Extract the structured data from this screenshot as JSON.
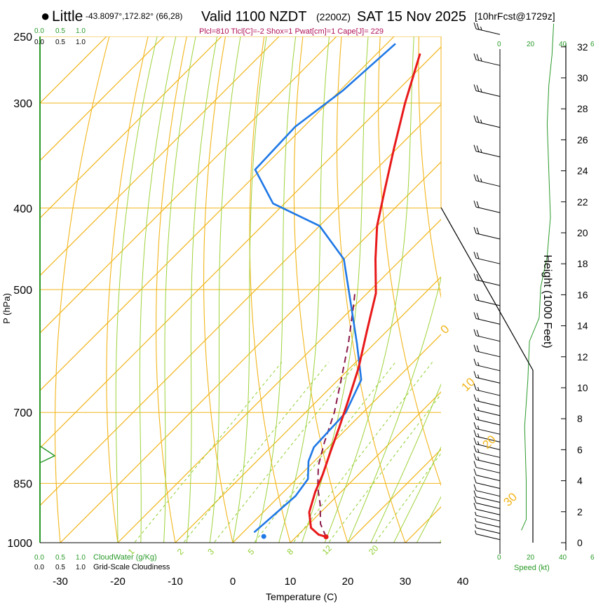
{
  "header": {
    "bullet": "●",
    "station": "Little",
    "coords": "-43.8097°,172.82° (66,28)",
    "valid": "Valid 1100 NZDT",
    "utc": "(2200Z)",
    "date": "SAT 15 Nov 2025",
    "forecast": "[10hrFcst@1729z]",
    "indices": "Plcl=810 Tlcl[C]=-2 Shox=1 Pwat[cm]=1 Cape[J]= 229"
  },
  "colors": {
    "temperature": "#e8191a",
    "dewpoint": "#1f78e6",
    "parcel": "#8b1a4a",
    "isotherm": "#f2b51a",
    "dry_adiabat": "#f2b51a",
    "moist_adiabat": "#9ed23a",
    "mixing_ratio": "#8fcf30",
    "cloud_green": "#2a9a2a",
    "indices_text": "#b0125a",
    "freezing_line": "#000000"
  },
  "chart_data": {
    "type": "skew-t",
    "xlabel": "Temperature (C)",
    "ylabel": "P (hPa)",
    "y2label": "Height (1000 Feet)",
    "x_tick_labels": [
      "-30",
      "-20",
      "-10",
      "0",
      "10",
      "20",
      "30",
      "40"
    ],
    "x_ticks": [
      -30,
      -20,
      -10,
      0,
      10,
      20,
      30,
      40
    ],
    "p_tick_labels": [
      "250",
      "300",
      "400",
      "500",
      "700",
      "850",
      "1000"
    ],
    "p_ticks": [
      250,
      300,
      400,
      500,
      700,
      850,
      1000
    ],
    "p_range": [
      250,
      1000
    ],
    "height_tick_labels": [
      "0",
      "2",
      "4",
      "6",
      "8",
      "10",
      "12",
      "14",
      "16",
      "18",
      "20",
      "22",
      "24",
      "26",
      "28",
      "30",
      "32"
    ],
    "height_ticks_kft": [
      0,
      2,
      4,
      6,
      8,
      10,
      12,
      14,
      16,
      18,
      20,
      22,
      24,
      26,
      28,
      30,
      32
    ],
    "temperature": [
      {
        "p": 984,
        "t": 15.2
      },
      {
        "p": 978,
        "t": 13.5
      },
      {
        "p": 960,
        "t": 11.0
      },
      {
        "p": 920,
        "t": 8.0
      },
      {
        "p": 870,
        "t": 5.5
      },
      {
        "p": 830,
        "t": 3.8
      },
      {
        "p": 780,
        "t": 1.2
      },
      {
        "p": 730,
        "t": -1.5
      },
      {
        "p": 680,
        "t": -4.5
      },
      {
        "p": 620,
        "t": -8.5
      },
      {
        "p": 560,
        "t": -13.5
      },
      {
        "p": 505,
        "t": -18.5
      },
      {
        "p": 460,
        "t": -24.5
      },
      {
        "p": 420,
        "t": -30.0
      },
      {
        "p": 380,
        "t": -35.0
      },
      {
        "p": 340,
        "t": -40.5
      },
      {
        "p": 300,
        "t": -46.5
      },
      {
        "p": 262,
        "t": -52.5
      }
    ],
    "dewpoint": [
      {
        "p": 972,
        "t": 1.9
      },
      {
        "p": 940,
        "t": 2.2
      },
      {
        "p": 880,
        "t": 2.8
      },
      {
        "p": 840,
        "t": 2.0
      },
      {
        "p": 800,
        "t": -1.0
      },
      {
        "p": 770,
        "t": -2.5
      },
      {
        "p": 700,
        "t": -3.0
      },
      {
        "p": 640,
        "t": -6.0
      },
      {
        "p": 580,
        "t": -13.0
      },
      {
        "p": 520,
        "t": -21.0
      },
      {
        "p": 460,
        "t": -30.0
      },
      {
        "p": 420,
        "t": -40.0
      },
      {
        "p": 395,
        "t": -52.0
      },
      {
        "p": 360,
        "t": -61.0
      },
      {
        "p": 320,
        "t": -61.5
      },
      {
        "p": 290,
        "t": -59.5
      },
      {
        "p": 255,
        "t": -58.5
      }
    ],
    "parcel": [
      {
        "p": 984,
        "t": 15.2
      },
      {
        "p": 950,
        "t": 12.0
      },
      {
        "p": 900,
        "t": 8.5
      },
      {
        "p": 860,
        "t": 5.2
      },
      {
        "p": 810,
        "t": 1.5
      },
      {
        "p": 760,
        "t": -1.5
      },
      {
        "p": 700,
        "t": -5.0
      },
      {
        "p": 640,
        "t": -9.5
      },
      {
        "p": 580,
        "t": -14.5
      },
      {
        "p": 520,
        "t": -20.5
      },
      {
        "p": 502,
        "t": -22.5
      }
    ],
    "surface_dewpoint_marker": {
      "p": 983,
      "t": 4.3
    },
    "surface_temperature_marker": {
      "p": 984,
      "t": 15.2
    },
    "isotherm_labels": [
      "-30",
      "-20",
      "-10",
      "0",
      "10",
      "20",
      "30"
    ],
    "isotherm_label_values": [
      -30,
      -20,
      -10,
      0,
      10,
      20,
      30
    ],
    "isotherm_left_labels": [
      "10",
      "0",
      "-10",
      "-20",
      "-30"
    ],
    "isotherm_left_values": [
      10,
      0,
      -10,
      -20,
      -30
    ],
    "isotherm_right_labels": [
      "0",
      "10",
      "20",
      "30"
    ],
    "isotherm_right_values": [
      0,
      10,
      20,
      30
    ],
    "mixing_ratio_labels": [
      "1",
      "2",
      "3",
      "5",
      "8",
      "12",
      "20"
    ],
    "mixing_ratio_values": [
      1,
      2,
      3,
      5,
      8,
      12,
      20
    ],
    "cloud_axis": {
      "top_labels": [
        "0.0",
        "0.5",
        "1.0"
      ],
      "bottom_labels": [
        "0.0",
        "0.5",
        "1.0"
      ],
      "cloudwater_label": "CloudWater (g/Kg)",
      "cloudiness_label": "Grid-Scale Cloudiness",
      "cloudiness_ticks": [
        "0.0",
        "0.5",
        "1.0"
      ]
    },
    "wind_axis": {
      "top_labels": [
        "0",
        "20",
        "40",
        "6"
      ],
      "bottom_labels": [
        "0",
        "20",
        "40",
        "6"
      ],
      "speed_label": "Speed (kt)"
    },
    "wind_barbs_kt": [
      {
        "h": 0.2,
        "s": 5
      },
      {
        "h": 0.6,
        "s": 5
      },
      {
        "h": 1.0,
        "s": 5
      },
      {
        "h": 1.4,
        "s": 5
      },
      {
        "h": 1.8,
        "s": 10
      },
      {
        "h": 2.2,
        "s": 10
      },
      {
        "h": 2.6,
        "s": 10
      },
      {
        "h": 3.0,
        "s": 10
      },
      {
        "h": 3.5,
        "s": 10
      },
      {
        "h": 4.0,
        "s": 10
      },
      {
        "h": 4.5,
        "s": 10
      },
      {
        "h": 5.0,
        "s": 15
      },
      {
        "h": 5.5,
        "s": 15
      },
      {
        "h": 6.0,
        "s": 15
      },
      {
        "h": 6.5,
        "s": 15
      },
      {
        "h": 7.0,
        "s": 15
      },
      {
        "h": 7.6,
        "s": 15
      },
      {
        "h": 8.2,
        "s": 15
      },
      {
        "h": 8.8,
        "s": 15
      },
      {
        "h": 9.5,
        "s": 15
      },
      {
        "h": 10.3,
        "s": 15
      },
      {
        "h": 11.1,
        "s": 15
      },
      {
        "h": 12.0,
        "s": 20
      },
      {
        "h": 13.0,
        "s": 20
      },
      {
        "h": 14.1,
        "s": 20
      },
      {
        "h": 15.3,
        "s": 20
      },
      {
        "h": 16.6,
        "s": 20
      },
      {
        "h": 18.0,
        "s": 20
      },
      {
        "h": 19.6,
        "s": 20
      },
      {
        "h": 21.3,
        "s": 20
      },
      {
        "h": 23.0,
        "s": 25
      },
      {
        "h": 24.9,
        "s": 25
      },
      {
        "h": 26.8,
        "s": 25
      },
      {
        "h": 28.8,
        "s": 25
      },
      {
        "h": 30.8,
        "s": 25
      },
      {
        "h": 32.8,
        "s": 25
      }
    ],
    "wind_speed_profile": [
      {
        "h": 0.8,
        "s": 2
      },
      {
        "h": 1.5,
        "s": 5
      },
      {
        "h": 4.0,
        "s": 5
      },
      {
        "h": 7.5,
        "s": 4
      },
      {
        "h": 10.5,
        "s": 6
      },
      {
        "h": 13.0,
        "s": 7
      },
      {
        "h": 14.5,
        "s": 13
      },
      {
        "h": 16.5,
        "s": 14
      },
      {
        "h": 18.5,
        "s": 18
      },
      {
        "h": 21.0,
        "s": 20
      },
      {
        "h": 24.0,
        "s": 19
      },
      {
        "h": 27.0,
        "s": 18
      },
      {
        "h": 29.5,
        "s": 19
      },
      {
        "h": 31.5,
        "s": 21
      },
      {
        "h": 33.5,
        "s": 22
      }
    ]
  }
}
